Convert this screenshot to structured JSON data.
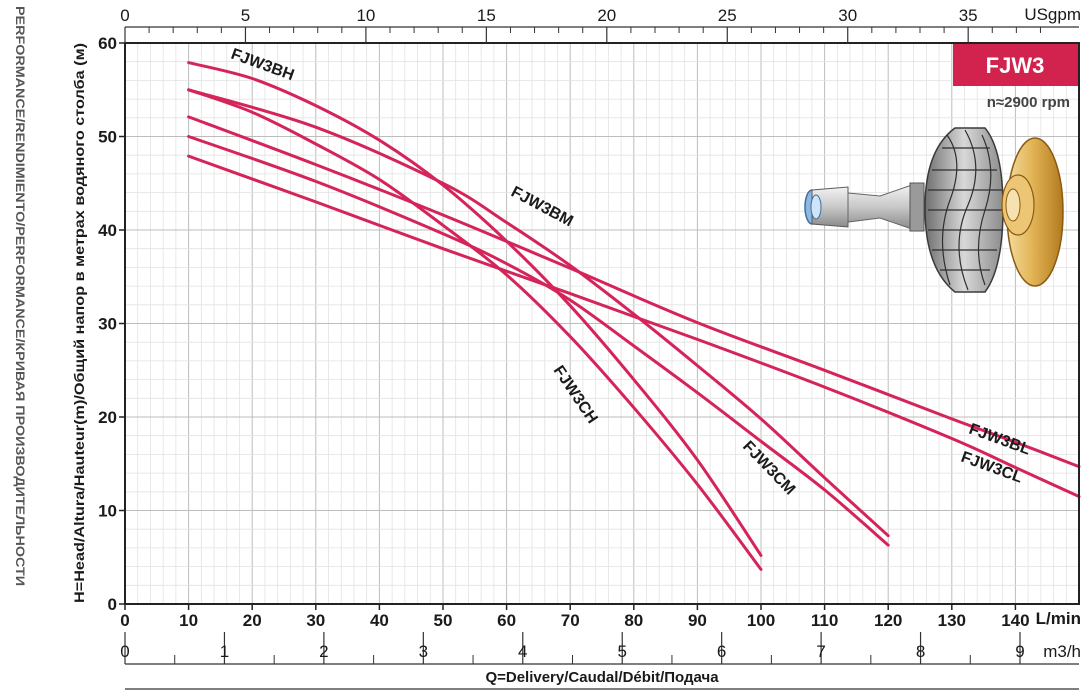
{
  "chart_data": {
    "type": "line",
    "model_badge": "FJW3",
    "speed_note": "n≈2900 rpm",
    "side_label": "PERFORMANCE/RENDIMIENTO/PERFORMANCE/КРИВАЯ ПРОИЗВОДИТЕЛЬНОСТИ",
    "ylabel": "H=Head/Altura/Hauteur(m)/Общий напор в метрах водяного столба (м)",
    "xlabel": "Q=Delivery/Caudal/Débit/Подача",
    "ylim": [
      0,
      60
    ],
    "yticks": [
      "0",
      "10",
      "20",
      "30",
      "40",
      "50",
      "60"
    ],
    "x_lmin": {
      "unit": "L/min",
      "range": [
        0,
        150
      ],
      "ticks": [
        "0",
        "10",
        "20",
        "30",
        "40",
        "50",
        "60",
        "70",
        "80",
        "90",
        "100",
        "110",
        "120",
        "130",
        "140"
      ]
    },
    "x_m3h": {
      "unit": "m3/h",
      "range": [
        0,
        9
      ],
      "ticks": [
        "0",
        "1",
        "2",
        "3",
        "4",
        "5",
        "6",
        "7",
        "8",
        "9"
      ]
    },
    "x_usgpm": {
      "unit": "USgpm",
      "range": [
        0,
        39.6
      ],
      "ticks": [
        "0",
        "5",
        "10",
        "15",
        "20",
        "25",
        "30",
        "35"
      ]
    },
    "grid": true,
    "series": [
      {
        "name": "FJW3BH",
        "points": [
          [
            10,
            57.9
          ],
          [
            20,
            56.2
          ],
          [
            30,
            53.3
          ],
          [
            40,
            49.6
          ],
          [
            50,
            44.8
          ],
          [
            60,
            38.8
          ],
          [
            70,
            31.9
          ],
          [
            80,
            24.0
          ],
          [
            90,
            15.4
          ],
          [
            100,
            5.2
          ]
        ]
      },
      {
        "name": "FJW3BM",
        "points": [
          [
            10,
            55.0
          ],
          [
            30,
            51.0
          ],
          [
            50,
            45.0
          ],
          [
            60,
            40.8
          ],
          [
            70,
            36.2
          ],
          [
            80,
            31.0
          ],
          [
            90,
            25.5
          ],
          [
            100,
            19.8
          ],
          [
            110,
            13.5
          ],
          [
            120,
            7.3
          ]
        ]
      },
      {
        "name": "FJW3BL",
        "points": [
          [
            10,
            52.1
          ],
          [
            30,
            47.0
          ],
          [
            50,
            41.6
          ],
          [
            70,
            35.9
          ],
          [
            90,
            30.1
          ],
          [
            110,
            25.0
          ],
          [
            130,
            19.8
          ],
          [
            140,
            17.3
          ],
          [
            150,
            14.7
          ]
        ]
      },
      {
        "name": "FJW3CL",
        "points": [
          [
            10,
            47.9
          ],
          [
            30,
            43.0
          ],
          [
            50,
            38.0
          ],
          [
            70,
            33.2
          ],
          [
            90,
            28.3
          ],
          [
            110,
            23.2
          ],
          [
            130,
            17.7
          ],
          [
            140,
            14.6
          ],
          [
            150,
            11.5
          ]
        ]
      },
      {
        "name": "FJW3CH",
        "points": [
          [
            10,
            55.0
          ],
          [
            20,
            52.6
          ],
          [
            30,
            49.2
          ],
          [
            40,
            45.4
          ],
          [
            50,
            40.5
          ],
          [
            60,
            35.2
          ],
          [
            70,
            28.6
          ],
          [
            80,
            21.0
          ],
          [
            90,
            12.8
          ],
          [
            100,
            3.7
          ]
        ]
      },
      {
        "name": "FJW3CM",
        "points": [
          [
            10,
            50.0
          ],
          [
            30,
            45.2
          ],
          [
            50,
            39.6
          ],
          [
            60,
            36.4
          ],
          [
            70,
            32.5
          ],
          [
            80,
            27.6
          ],
          [
            90,
            22.6
          ],
          [
            100,
            17.4
          ],
          [
            110,
            12.2
          ],
          [
            120,
            6.3
          ]
        ]
      }
    ],
    "curve_labels": [
      {
        "text": "FJW3BH"
      },
      {
        "text": "FJW3BM"
      },
      {
        "text": "FJW3BL"
      },
      {
        "text": "FJW3CL"
      },
      {
        "text": "FJW3CH"
      },
      {
        "text": "FJW3CM"
      }
    ],
    "colors": {
      "curve": "#d4245a",
      "badge": "#d2234f",
      "frame": "#222222",
      "grid_major": "#bdbdbd",
      "grid_minor": "#e2e2e2"
    }
  }
}
